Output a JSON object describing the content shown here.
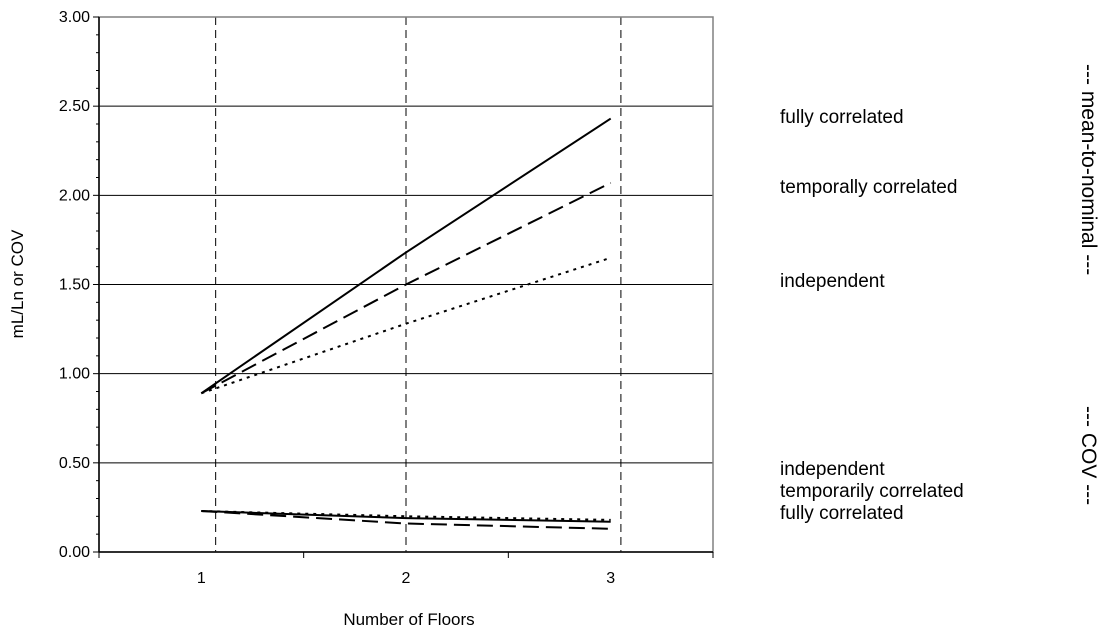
{
  "chart_data": {
    "type": "line",
    "title": "",
    "xlabel": "Number of Floors",
    "ylabel": "mL/Ln  or COV",
    "x": [
      1,
      2,
      3
    ],
    "x_tick_labels": [
      "1",
      "2",
      "3"
    ],
    "xlim": [
      0.5,
      3.5
    ],
    "ylim": [
      0,
      3
    ],
    "y_ticks": [
      0,
      0.5,
      1,
      1.5,
      2,
      2.5,
      3
    ],
    "y_tick_labels": [
      "0.00",
      "0.50",
      "1.00",
      "1.50",
      "2.00",
      "2.50",
      "3.00"
    ],
    "grid": "horizontal major gridlines",
    "reference_lines_x": [
      1.07,
      2.0,
      3.05
    ],
    "series": [
      {
        "group": "mean-to-nominal",
        "style": "solid",
        "values": [
          0.89,
          1.68,
          2.43
        ]
      },
      {
        "group": "mean-to-nominal",
        "style": "long-dash",
        "values": [
          0.89,
          1.5,
          2.07
        ]
      },
      {
        "group": "mean-to-nominal",
        "style": "dotted",
        "values": [
          0.89,
          1.28,
          1.65
        ]
      },
      {
        "group": "COV",
        "style": "solid",
        "values": [
          0.23,
          0.19,
          0.17
        ]
      },
      {
        "group": "COV",
        "style": "long-dash",
        "values": [
          0.23,
          0.16,
          0.13
        ]
      },
      {
        "group": "COV",
        "style": "dotted",
        "values": [
          0.23,
          0.2,
          0.18
        ]
      }
    ],
    "side_labels": {
      "mean": [
        "fully correlated",
        "temporally correlated",
        "independent"
      ],
      "cov": [
        "independent",
        "temporarily correlated",
        "fully correlated"
      ],
      "mean_group_title": "--- mean-to-nominal ---",
      "cov_group_title": "--- COV ---"
    }
  }
}
